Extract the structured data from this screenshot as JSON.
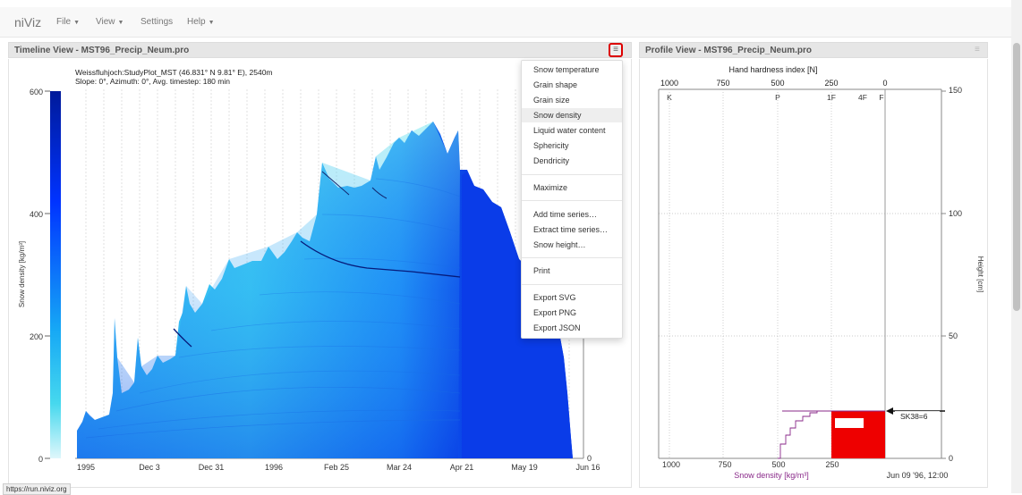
{
  "app": {
    "brand": "niViz",
    "menu": [
      {
        "label": "File",
        "dropdown": true
      },
      {
        "label": "View",
        "dropdown": true
      },
      {
        "label": "Settings",
        "dropdown": false
      },
      {
        "label": "Help",
        "dropdown": true
      }
    ]
  },
  "timeline_panel": {
    "title": "Timeline View - MST96_Precip_Neum.pro",
    "menu_icon": "hamburger-icon",
    "station": "Weissfluhjoch:StudyPlot_MST (46.831° N 9.81° E), 2540m",
    "params": "Slope: 0°, Azimuth: 0°, Avg. timestep: 180 min",
    "y_label": "Snow density [kg/m³]",
    "y_ticks": [
      "600",
      "400",
      "200",
      "0"
    ],
    "x_ticks": [
      "1995",
      "Dec 3",
      "Dec 31",
      "1996",
      "Feb 25",
      "Mar 24",
      "Apr 21",
      "May 19",
      "Jun 16"
    ],
    "right_axis_tick": "0"
  },
  "dropdown_menu": {
    "groups": [
      [
        "Snow temperature",
        "Grain shape",
        "Grain size",
        "Snow density",
        "Liquid water content",
        "Sphericity",
        "Dendricity"
      ],
      [
        "Maximize"
      ],
      [
        "Add time series…",
        "Extract time series…",
        "Snow height…"
      ],
      [
        "Print"
      ],
      [
        "Export SVG",
        "Export PNG",
        "Export JSON"
      ]
    ],
    "active_item": "Snow density"
  },
  "profile_panel": {
    "title": "Profile View - MST96_Precip_Neum.pro",
    "menu_icon": "hamburger-icon",
    "top_axis_label": "Hand hardness index [N]",
    "top_ticks": [
      "1000",
      "750",
      "500",
      "250",
      "0"
    ],
    "hardness_labels": [
      "K",
      "P",
      "1F",
      "4F",
      "F"
    ],
    "bottom_ticks": [
      "1000",
      "750",
      "500",
      "250"
    ],
    "bottom_axis_label": "Snow density [kg/m³]",
    "date": "Jun 09 '96, 12:00",
    "right_axis_label": "Height [cm]",
    "right_ticks": [
      "150",
      "100",
      "50",
      "0"
    ],
    "annotation": "SK38=6",
    "colors": {
      "density_line": "#8a2a8a",
      "layer_fill": "#ee0000",
      "pointer": "#111111"
    }
  },
  "status_bar": {
    "url": "https://run.niviz.org"
  }
}
